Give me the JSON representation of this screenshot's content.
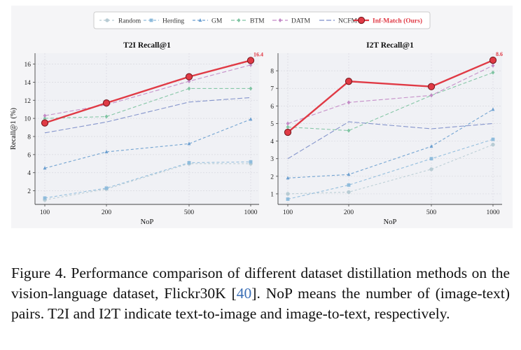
{
  "legend": {
    "entries": [
      {
        "name": "Random",
        "color": "#b8ccd4",
        "marker": "circle",
        "dash": "3,3",
        "highlight": false
      },
      {
        "name": "Herding",
        "color": "#8fbcdc",
        "marker": "square",
        "dash": "4,3",
        "highlight": false
      },
      {
        "name": "GM",
        "color": "#6c9fd0",
        "marker": "triangle",
        "dash": "4,3",
        "highlight": false
      },
      {
        "name": "BTM",
        "color": "#7fc4a2",
        "marker": "diamond",
        "dash": "5,3",
        "highlight": false
      },
      {
        "name": "DATM",
        "color": "#c38ac6",
        "marker": "diamond",
        "dash": "6,3",
        "highlight": false
      },
      {
        "name": "NCFM",
        "color": "#7e8fc9",
        "marker": "none",
        "dash": "7,3",
        "highlight": false
      },
      {
        "name": "Inf-Match (Ours)",
        "color": "#e03a45",
        "marker": "circle",
        "dash": "",
        "highlight": true
      }
    ]
  },
  "chart_data": [
    {
      "type": "line",
      "title": "T2I Recall@1",
      "xlabel": "NoP",
      "ylabel": "Recall@1 (%)",
      "categories": [
        "100",
        "200",
        "500",
        "1000"
      ],
      "ylim": [
        0.5,
        17.2
      ],
      "yticks": [
        2,
        4,
        6,
        8,
        10,
        12,
        14,
        16
      ],
      "grid": true,
      "series": [
        {
          "name": "Random",
          "values": [
            1.0,
            2.2,
            5.0,
            5.0
          ]
        },
        {
          "name": "Herding",
          "values": [
            1.2,
            2.3,
            5.1,
            5.2
          ]
        },
        {
          "name": "GM",
          "values": [
            4.5,
            6.3,
            7.2,
            9.9
          ]
        },
        {
          "name": "BTM",
          "values": [
            10.0,
            10.2,
            13.3,
            13.3
          ]
        },
        {
          "name": "DATM",
          "values": [
            10.3,
            11.5,
            14.1,
            15.9
          ]
        },
        {
          "name": "NCFM",
          "values": [
            8.4,
            9.6,
            11.8,
            12.3
          ]
        },
        {
          "name": "Inf-Match (Ours)",
          "values": [
            9.5,
            11.7,
            14.6,
            16.4
          ]
        }
      ],
      "annotation": "16.4"
    },
    {
      "type": "line",
      "title": "I2T Recall@1",
      "xlabel": "NoP",
      "ylabel": "",
      "categories": [
        "100",
        "200",
        "500",
        "1000"
      ],
      "ylim": [
        0.4,
        9.0
      ],
      "yticks": [
        1,
        2,
        3,
        4,
        5,
        6,
        7,
        8
      ],
      "grid": true,
      "series": [
        {
          "name": "Random",
          "values": [
            1.0,
            1.1,
            2.4,
            3.8
          ]
        },
        {
          "name": "Herding",
          "values": [
            0.7,
            1.5,
            3.0,
            4.1
          ]
        },
        {
          "name": "GM",
          "values": [
            1.9,
            2.1,
            3.7,
            5.8
          ]
        },
        {
          "name": "BTM",
          "values": [
            4.8,
            4.6,
            6.6,
            7.9
          ]
        },
        {
          "name": "DATM",
          "values": [
            5.0,
            6.2,
            6.6,
            8.3
          ]
        },
        {
          "name": "NCFM",
          "values": [
            3.0,
            5.1,
            4.7,
            5.0
          ]
        },
        {
          "name": "Inf-Match (Ours)",
          "values": [
            4.5,
            7.4,
            7.1,
            8.6
          ]
        }
      ],
      "annotation": "8.6"
    }
  ],
  "caption": {
    "text_before_cite": "Figure 4.  Performance comparison of different dataset distillation methods on the vision-language dataset, Flickr30K [",
    "cite": "40",
    "text_after_cite": "].  NoP means the number of (image-text) pairs. T2I and I2T indicate text-to-image and image-to-text, respectively."
  }
}
